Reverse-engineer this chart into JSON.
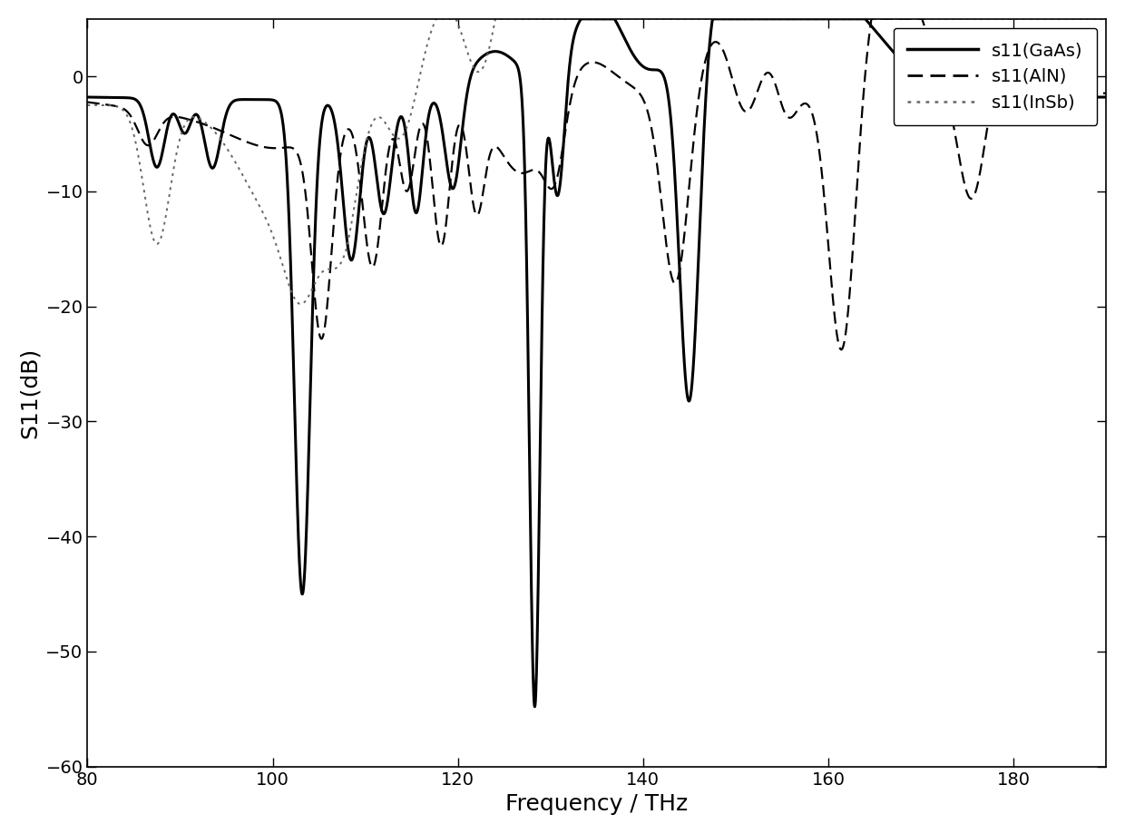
{
  "title": "",
  "xlabel": "Frequency / THz",
  "ylabel": "S11(dB)",
  "xlim": [
    80,
    190
  ],
  "ylim": [
    -60,
    5
  ],
  "xticks": [
    80,
    100,
    120,
    140,
    160,
    180
  ],
  "yticks": [
    0,
    -10,
    -20,
    -30,
    -40,
    -50,
    -60
  ],
  "legend_labels": [
    "s11(GaAs)",
    "s11(AlN)",
    "s11(InSb)"
  ],
  "background_color": "#ffffff",
  "figsize": [
    12.4,
    9.19
  ],
  "dpi": 100
}
